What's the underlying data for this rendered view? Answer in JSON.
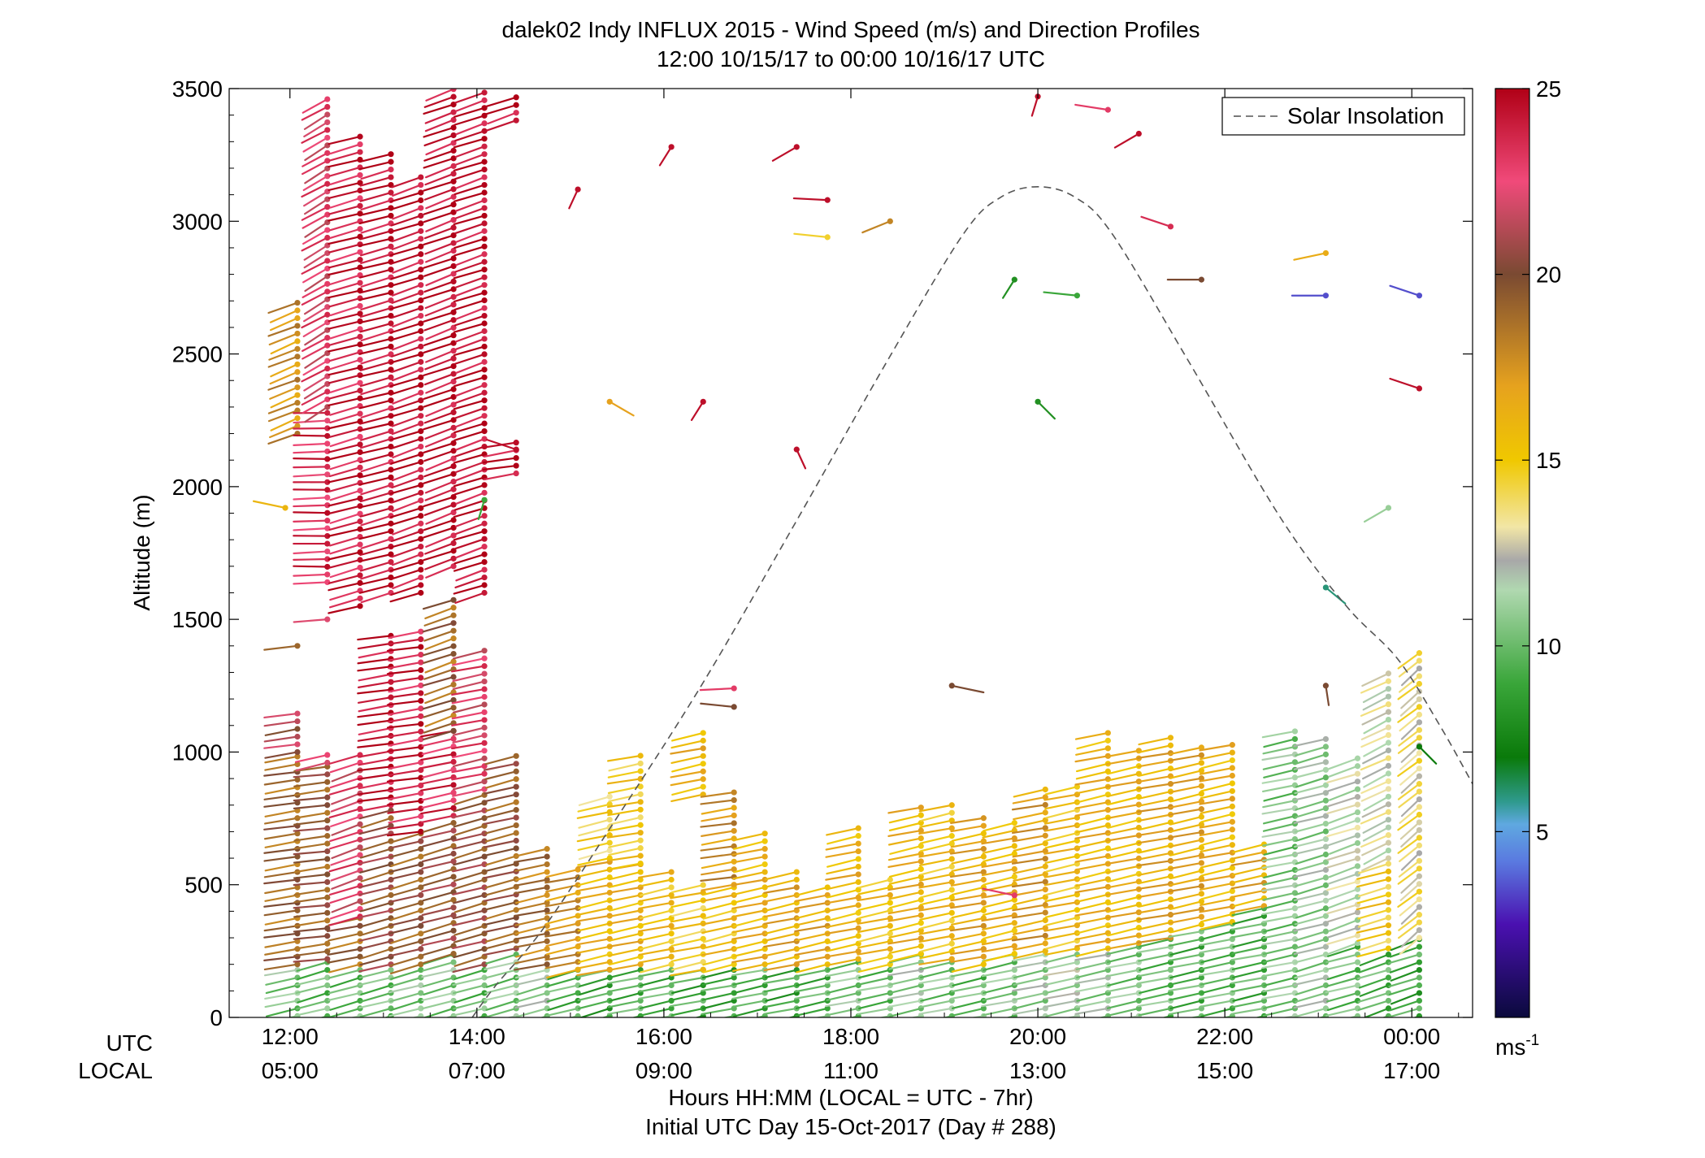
{
  "chart_data": {
    "type": "scatter",
    "title": "dalek02 Indy INFLUX 2015 - Wind Speed (m/s) and Direction Profiles",
    "subtitle": "12:00 10/15/17 to 00:00 10/16/17  UTC",
    "ylabel": "Altitude (m)",
    "xlabel": "Hours HH:MM  (LOCAL = UTC - 7hr)",
    "xlabel2": "Initial UTC Day 15-Oct-2017 (Day # 288)",
    "row_labels": {
      "utc": "UTC",
      "local": "LOCAL"
    },
    "xlim": [
      11.35,
      24.65
    ],
    "ylim": [
      0,
      3500
    ],
    "y_ticks": [
      0,
      500,
      1000,
      1500,
      2000,
      2500,
      3000,
      3500
    ],
    "x_ticks": [
      {
        "x": 12,
        "utc": "12:00",
        "local": "05:00"
      },
      {
        "x": 14,
        "utc": "14:00",
        "local": "07:00"
      },
      {
        "x": 16,
        "utc": "16:00",
        "local": "09:00"
      },
      {
        "x": 18,
        "utc": "18:00",
        "local": "11:00"
      },
      {
        "x": 20,
        "utc": "20:00",
        "local": "13:00"
      },
      {
        "x": 22,
        "utc": "22:00",
        "local": "15:00"
      },
      {
        "x": 24,
        "utc": "00:00",
        "local": "17:00"
      }
    ],
    "legend": {
      "label": "Solar Insolation",
      "placement": "top-right"
    },
    "solar_insolation": {
      "peak_x": 20.0,
      "peak_y": 3130,
      "curve": [
        [
          13.95,
          0
        ],
        [
          14.2,
          120
        ],
        [
          14.7,
          330
        ],
        [
          15.4,
          700
        ],
        [
          16.4,
          1250
        ],
        [
          17.4,
          1860
        ],
        [
          18.4,
          2480
        ],
        [
          19.2,
          2950
        ],
        [
          19.6,
          3090
        ],
        [
          20.0,
          3130
        ],
        [
          20.4,
          3090
        ],
        [
          20.8,
          2950
        ],
        [
          21.6,
          2480
        ],
        [
          22.6,
          1880
        ],
        [
          23.3,
          1550
        ],
        [
          23.85,
          1350
        ],
        [
          24.3,
          1100
        ],
        [
          24.65,
          880
        ]
      ]
    },
    "colorbar": {
      "label": "ms",
      "label_sup": "-1",
      "range": [
        0,
        25
      ],
      "ticks": [
        5,
        10,
        15,
        20,
        25
      ],
      "stops": [
        {
          "v": 0,
          "c": "#0a0a3c"
        },
        {
          "v": 2.5,
          "c": "#4a10b0"
        },
        {
          "v": 4.2,
          "c": "#5a7ae0"
        },
        {
          "v": 5.2,
          "c": "#5fa8e0"
        },
        {
          "v": 5.8,
          "c": "#2f9a8e"
        },
        {
          "v": 7.0,
          "c": "#0a7a0a"
        },
        {
          "v": 9.0,
          "c": "#3aa63a"
        },
        {
          "v": 11.5,
          "c": "#b0d8b0"
        },
        {
          "v": 12.3,
          "c": "#a8a8a8"
        },
        {
          "v": 13.2,
          "c": "#f2e6a6"
        },
        {
          "v": 15.0,
          "c": "#f0c800"
        },
        {
          "v": 17.0,
          "c": "#e6a21e"
        },
        {
          "v": 20.0,
          "c": "#7a4a32"
        },
        {
          "v": 22.5,
          "c": "#f04a7a"
        },
        {
          "v": 25.0,
          "c": "#b00016"
        }
      ]
    },
    "barb_length_hours": 0.38,
    "profiles": [
      {
        "x": 12.08,
        "segments": [
          [
            0,
            200,
            10.5,
            250
          ],
          [
            200,
            1000,
            19.0,
            255
          ],
          [
            1000,
            1170,
            21.0,
            255
          ],
          [
            1400,
            1420,
            18.0,
            255
          ],
          [
            2200,
            2700,
            17.5,
            235
          ]
        ]
      },
      {
        "x": 12.4,
        "segments": [
          [
            0,
            220,
            10.0,
            245
          ],
          [
            220,
            960,
            19.5,
            258
          ],
          [
            960,
            990,
            23.0,
            250
          ],
          [
            1500,
            1520,
            23.0,
            265
          ],
          [
            1640,
            2300,
            23.5,
            268
          ],
          [
            2300,
            3480,
            22.5,
            225
          ]
        ]
      },
      {
        "x": 12.75,
        "segments": [
          [
            0,
            200,
            10.0,
            245
          ],
          [
            200,
            380,
            19.0,
            250
          ],
          [
            380,
            1000,
            22.5,
            240
          ],
          [
            1550,
            3330,
            24.0,
            245
          ]
        ]
      },
      {
        "x": 13.08,
        "segments": [
          [
            0,
            200,
            10.0,
            245
          ],
          [
            200,
            800,
            20.0,
            245
          ],
          [
            800,
            1450,
            24.5,
            255
          ],
          [
            1600,
            3280,
            24.5,
            245
          ]
        ]
      },
      {
        "x": 13.4,
        "segments": [
          [
            0,
            200,
            10.5,
            245
          ],
          [
            200,
            700,
            19.5,
            245
          ],
          [
            700,
            1480,
            24.0,
            255
          ],
          [
            1600,
            3180,
            24.5,
            240
          ]
        ]
      },
      {
        "x": 13.75,
        "segments": [
          [
            0,
            240,
            10.5,
            245
          ],
          [
            240,
            760,
            20.0,
            245
          ],
          [
            760,
            1080,
            23.5,
            250
          ],
          [
            1080,
            1600,
            19.0,
            240
          ],
          [
            1700,
            3500,
            24.5,
            238
          ]
        ]
      },
      {
        "x": 14.08,
        "segments": [
          [
            0,
            200,
            10.0,
            245
          ],
          [
            200,
            860,
            20.0,
            245
          ],
          [
            860,
            1400,
            22.5,
            250
          ],
          [
            1600,
            3500,
            24.5,
            240
          ]
        ]
      },
      {
        "x": 14.42,
        "segments": [
          [
            0,
            260,
            10.5,
            245
          ],
          [
            260,
            1000,
            19.5,
            247
          ],
          [
            2050,
            2180,
            24.5,
            255
          ],
          [
            3380,
            3470,
            24.5,
            240
          ]
        ]
      },
      {
        "x": 14.75,
        "segments": [
          [
            0,
            200,
            11.0,
            245
          ],
          [
            200,
            640,
            18.5,
            250
          ]
        ]
      },
      {
        "x": 15.08,
        "segments": [
          [
            0,
            180,
            9.5,
            245
          ],
          [
            180,
            560,
            17.5,
            250
          ]
        ]
      },
      {
        "x": 15.42,
        "segments": [
          [
            0,
            180,
            9.0,
            245
          ],
          [
            180,
            600,
            16.0,
            250
          ],
          [
            600,
            860,
            14.5,
            248
          ]
        ]
      },
      {
        "x": 15.75,
        "segments": [
          [
            0,
            200,
            9.5,
            250
          ],
          [
            200,
            580,
            16.0,
            250
          ],
          [
            580,
            1010,
            15.0,
            252
          ]
        ]
      },
      {
        "x": 16.08,
        "segments": [
          [
            0,
            200,
            9.5,
            250
          ],
          [
            200,
            560,
            15.5,
            250
          ]
        ]
      },
      {
        "x": 16.42,
        "segments": [
          [
            0,
            180,
            9.0,
            250
          ],
          [
            180,
            500,
            15.0,
            250
          ],
          [
            840,
            1090,
            16.0,
            250
          ]
        ]
      },
      {
        "x": 16.75,
        "segments": [
          [
            0,
            200,
            9.0,
            250
          ],
          [
            200,
            500,
            15.5,
            248
          ],
          [
            500,
            850,
            17.5,
            255
          ]
        ]
      },
      {
        "x": 17.08,
        "segments": [
          [
            0,
            200,
            9.5,
            250
          ],
          [
            200,
            700,
            16.0,
            250
          ]
        ]
      },
      {
        "x": 17.42,
        "segments": [
          [
            0,
            200,
            9.0,
            250
          ],
          [
            200,
            550,
            16.5,
            250
          ]
        ]
      },
      {
        "x": 17.75,
        "segments": [
          [
            0,
            200,
            9.5,
            250
          ],
          [
            200,
            510,
            16.5,
            250
          ]
        ]
      },
      {
        "x": 18.08,
        "segments": [
          [
            0,
            220,
            10.5,
            250
          ],
          [
            220,
            720,
            16.0,
            250
          ]
        ]
      },
      {
        "x": 18.42,
        "segments": [
          [
            0,
            200,
            10.0,
            250
          ],
          [
            200,
            540,
            15.5,
            250
          ]
        ]
      },
      {
        "x": 18.75,
        "segments": [
          [
            0,
            240,
            11.0,
            250
          ],
          [
            240,
            800,
            16.0,
            250
          ]
        ]
      },
      {
        "x": 19.08,
        "segments": [
          [
            0,
            220,
            10.5,
            250
          ],
          [
            220,
            820,
            15.5,
            250
          ]
        ]
      },
      {
        "x": 19.42,
        "segments": [
          [
            0,
            200,
            10.0,
            250
          ],
          [
            200,
            760,
            16.5,
            252
          ]
        ]
      },
      {
        "x": 19.75,
        "segments": [
          [
            0,
            240,
            10.5,
            250
          ],
          [
            240,
            760,
            16.0,
            250
          ]
        ]
      },
      {
        "x": 20.08,
        "segments": [
          [
            0,
            250,
            11.0,
            250
          ],
          [
            250,
            860,
            17.0,
            252
          ]
        ]
      },
      {
        "x": 20.42,
        "segments": [
          [
            0,
            260,
            11.5,
            250
          ],
          [
            260,
            880,
            15.5,
            250
          ]
        ]
      },
      {
        "x": 20.75,
        "segments": [
          [
            0,
            260,
            11.0,
            250
          ],
          [
            260,
            1100,
            16.0,
            250
          ]
        ]
      },
      {
        "x": 21.08,
        "segments": [
          [
            0,
            280,
            10.5,
            250
          ],
          [
            280,
            1020,
            16.0,
            250
          ]
        ]
      },
      {
        "x": 21.42,
        "segments": [
          [
            0,
            300,
            10.0,
            250
          ],
          [
            300,
            1080,
            16.5,
            252
          ]
        ]
      },
      {
        "x": 21.75,
        "segments": [
          [
            0,
            350,
            9.5,
            250
          ],
          [
            350,
            1040,
            16.5,
            250
          ]
        ]
      },
      {
        "x": 22.08,
        "segments": [
          [
            0,
            360,
            10.0,
            250
          ],
          [
            360,
            1040,
            16.0,
            250
          ]
        ]
      },
      {
        "x": 22.42,
        "segments": [
          [
            0,
            420,
            9.5,
            250
          ],
          [
            420,
            680,
            16.5,
            250
          ]
        ]
      },
      {
        "x": 22.75,
        "segments": [
          [
            0,
            1100,
            10.5,
            250
          ]
        ]
      },
      {
        "x": 23.08,
        "segments": [
          [
            0,
            1050,
            11.0,
            245
          ]
        ]
      },
      {
        "x": 23.42,
        "segments": [
          [
            0,
            280,
            10.0,
            245
          ],
          [
            280,
            1000,
            12.0,
            240
          ]
        ]
      },
      {
        "x": 23.75,
        "segments": [
          [
            0,
            260,
            9.5,
            240
          ],
          [
            260,
            600,
            15.0,
            245
          ],
          [
            600,
            1320,
            12.5,
            230
          ]
        ]
      },
      {
        "x": 24.08,
        "segments": [
          [
            0,
            300,
            9.0,
            240
          ],
          [
            300,
            1380,
            13.5,
            215
          ]
        ]
      }
    ],
    "isolated_barbs": [
      {
        "x": 16.08,
        "y": 3280,
        "s": 24.5,
        "d": 200
      },
      {
        "x": 15.08,
        "y": 3120,
        "s": 24.5,
        "d": 195
      },
      {
        "x": 17.42,
        "y": 3280,
        "s": 24.5,
        "d": 225
      },
      {
        "x": 17.75,
        "y": 3080,
        "s": 24.5,
        "d": 275
      },
      {
        "x": 18.42,
        "y": 3000,
        "s": 18.0,
        "d": 235
      },
      {
        "x": 17.75,
        "y": 2940,
        "s": 14.5,
        "d": 280
      },
      {
        "x": 20.0,
        "y": 3470,
        "s": 24.5,
        "d": 190
      },
      {
        "x": 20.75,
        "y": 3420,
        "s": 23.0,
        "d": 285
      },
      {
        "x": 21.08,
        "y": 3330,
        "s": 24.5,
        "d": 225
      },
      {
        "x": 21.42,
        "y": 2980,
        "s": 23.5,
        "d": 300
      },
      {
        "x": 21.75,
        "y": 2780,
        "s": 20.0,
        "d": 270
      },
      {
        "x": 20.42,
        "y": 2720,
        "s": 9.0,
        "d": 280
      },
      {
        "x": 19.75,
        "y": 2780,
        "s": 8.0,
        "d": 200
      },
      {
        "x": 20.0,
        "y": 2320,
        "s": 8.0,
        "d": 150
      },
      {
        "x": 23.08,
        "y": 2880,
        "s": 16.5,
        "d": 250
      },
      {
        "x": 23.08,
        "y": 2720,
        "s": 3.5,
        "d": 270
      },
      {
        "x": 24.08,
        "y": 2720,
        "s": 3.5,
        "d": 300
      },
      {
        "x": 24.08,
        "y": 2370,
        "s": 24.5,
        "d": 300
      },
      {
        "x": 15.42,
        "y": 2320,
        "s": 17.0,
        "d": 135
      },
      {
        "x": 16.42,
        "y": 2320,
        "s": 24.5,
        "d": 200
      },
      {
        "x": 17.42,
        "y": 2140,
        "s": 24.5,
        "d": 165
      },
      {
        "x": 14.42,
        "y": 2140,
        "s": 24.5,
        "d": 300
      },
      {
        "x": 14.08,
        "y": 1950,
        "s": 9.0,
        "d": 190
      },
      {
        "x": 11.95,
        "y": 1920,
        "s": 16.0,
        "d": 290
      },
      {
        "x": 23.75,
        "y": 1920,
        "s": 11.0,
        "d": 225
      },
      {
        "x": 23.08,
        "y": 1620,
        "s": 6.0,
        "d": 145
      },
      {
        "x": 16.75,
        "y": 1240,
        "s": 23.0,
        "d": 265
      },
      {
        "x": 16.75,
        "y": 1170,
        "s": 20.0,
        "d": 280
      },
      {
        "x": 19.08,
        "y": 1250,
        "s": 20.0,
        "d": 110
      },
      {
        "x": 23.08,
        "y": 1250,
        "s": 20.0,
        "d": 175
      },
      {
        "x": 24.08,
        "y": 1020,
        "s": 7.0,
        "d": 150
      },
      {
        "x": 19.75,
        "y": 460,
        "s": 23.0,
        "d": 290
      }
    ]
  }
}
